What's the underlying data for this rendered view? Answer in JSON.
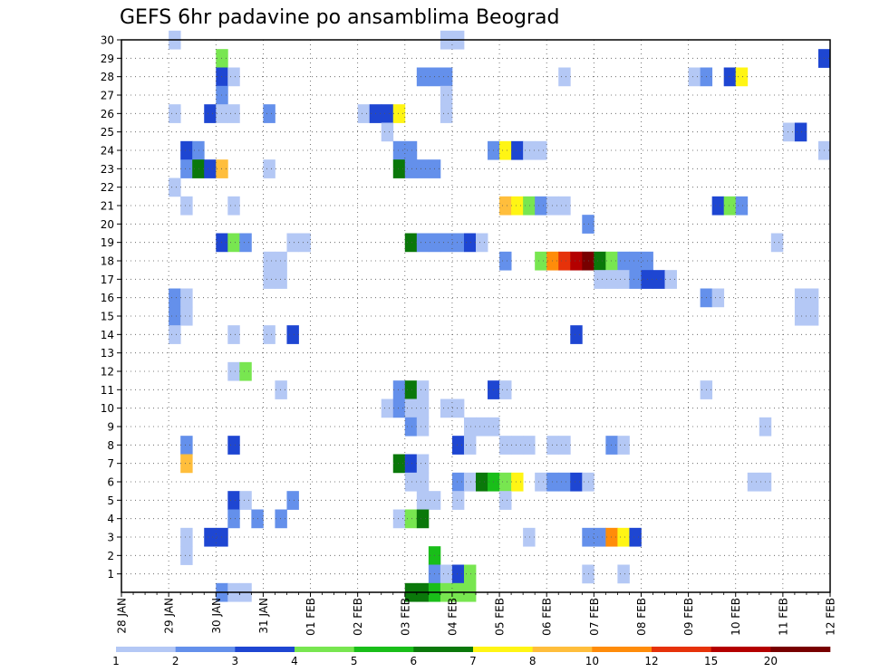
{
  "chart_data": {
    "type": "heatmap",
    "title": "GEFS 6hr padavine po ansamblima Beograd",
    "xlabel": "",
    "ylabel": "",
    "x_unit_note": "6-hour steps from 28 JAN (step 0) to 12 FEB (step 60)",
    "x_ticks": [
      "28 JAN",
      "29 JAN",
      "30 JAN",
      "31 JAN",
      "01 FEB",
      "02 FEB",
      "03 FEB",
      "04 FEB",
      "05 FEB",
      "06 FEB",
      "07 FEB",
      "08 FEB",
      "09 FEB",
      "10 FEB",
      "11 FEB",
      "12 FEB"
    ],
    "y_ticks": [
      "1",
      "2",
      "3",
      "4",
      "5",
      "6",
      "7",
      "8",
      "9",
      "10",
      "11",
      "12",
      "13",
      "14",
      "15",
      "16",
      "17",
      "18",
      "19",
      "20",
      "21",
      "22",
      "23",
      "24",
      "25",
      "26",
      "27",
      "28",
      "29",
      "30"
    ],
    "ylim": [
      0,
      30
    ],
    "grid": true,
    "colorbar": {
      "labels": [
        "1",
        "2",
        "3",
        "4",
        "5",
        "6",
        "7",
        "8",
        "10",
        "12",
        "15",
        "20"
      ],
      "colors": [
        "#b4c8f5",
        "#6490eb",
        "#1e46d2",
        "#78e650",
        "#19be19",
        "#0a780a",
        "#fff514",
        "#ffbe3c",
        "#ff8c0a",
        "#e6320a",
        "#b40000",
        "#780000"
      ]
    },
    "cells": [
      [
        30,
        4,
        1
      ],
      [
        30,
        27,
        1
      ],
      [
        30,
        28,
        1
      ],
      [
        29,
        8,
        4
      ],
      [
        29,
        59,
        3
      ],
      [
        28,
        8,
        3
      ],
      [
        28,
        9,
        1
      ],
      [
        28,
        25,
        2
      ],
      [
        28,
        26,
        2
      ],
      [
        28,
        27,
        2
      ],
      [
        28,
        37,
        1
      ],
      [
        28,
        48,
        1
      ],
      [
        28,
        49,
        2
      ],
      [
        28,
        51,
        3
      ],
      [
        28,
        52,
        7
      ],
      [
        27,
        8,
        2
      ],
      [
        27,
        27,
        1
      ],
      [
        26,
        4,
        1
      ],
      [
        26,
        7,
        3
      ],
      [
        26,
        8,
        1
      ],
      [
        26,
        9,
        1
      ],
      [
        26,
        12,
        2
      ],
      [
        26,
        20,
        1
      ],
      [
        26,
        21,
        3
      ],
      [
        26,
        22,
        3
      ],
      [
        26,
        23,
        7
      ],
      [
        26,
        27,
        1
      ],
      [
        25,
        22,
        1
      ],
      [
        25,
        56,
        1
      ],
      [
        25,
        57,
        3
      ],
      [
        24,
        5,
        3
      ],
      [
        24,
        6,
        2
      ],
      [
        24,
        23,
        2
      ],
      [
        24,
        24,
        2
      ],
      [
        24,
        31,
        2
      ],
      [
        24,
        32,
        7
      ],
      [
        24,
        33,
        3
      ],
      [
        24,
        34,
        1
      ],
      [
        24,
        35,
        1
      ],
      [
        24,
        59,
        1
      ],
      [
        23,
        5,
        2
      ],
      [
        23,
        6,
        6
      ],
      [
        23,
        7,
        3
      ],
      [
        23,
        8,
        8
      ],
      [
        23,
        12,
        1
      ],
      [
        23,
        23,
        6
      ],
      [
        23,
        24,
        2
      ],
      [
        23,
        25,
        2
      ],
      [
        23,
        26,
        2
      ],
      [
        22,
        4,
        1
      ],
      [
        21,
        5,
        1
      ],
      [
        21,
        9,
        1
      ],
      [
        21,
        32,
        8
      ],
      [
        21,
        33,
        7
      ],
      [
        21,
        34,
        4
      ],
      [
        21,
        35,
        2
      ],
      [
        21,
        36,
        1
      ],
      [
        21,
        37,
        1
      ],
      [
        21,
        50,
        3
      ],
      [
        21,
        51,
        4
      ],
      [
        21,
        52,
        2
      ],
      [
        20,
        39,
        2
      ],
      [
        19,
        8,
        3
      ],
      [
        19,
        9,
        4
      ],
      [
        19,
        10,
        2
      ],
      [
        19,
        14,
        1
      ],
      [
        19,
        15,
        1
      ],
      [
        19,
        24,
        6
      ],
      [
        19,
        25,
        2
      ],
      [
        19,
        26,
        2
      ],
      [
        19,
        27,
        2
      ],
      [
        19,
        28,
        2
      ],
      [
        19,
        29,
        3
      ],
      [
        19,
        30,
        1
      ],
      [
        19,
        55,
        1
      ],
      [
        18,
        12,
        1
      ],
      [
        18,
        13,
        1
      ],
      [
        18,
        32,
        2
      ],
      [
        18,
        35,
        4
      ],
      [
        18,
        36,
        9
      ],
      [
        18,
        37,
        10
      ],
      [
        18,
        38,
        11
      ],
      [
        18,
        39,
        12
      ],
      [
        18,
        40,
        6
      ],
      [
        18,
        41,
        4
      ],
      [
        18,
        42,
        2
      ],
      [
        18,
        43,
        2
      ],
      [
        18,
        44,
        2
      ],
      [
        17,
        12,
        1
      ],
      [
        17,
        13,
        1
      ],
      [
        17,
        40,
        1
      ],
      [
        17,
        41,
        1
      ],
      [
        17,
        42,
        1
      ],
      [
        17,
        43,
        2
      ],
      [
        17,
        44,
        3
      ],
      [
        17,
        45,
        3
      ],
      [
        17,
        46,
        1
      ],
      [
        16,
        4,
        2
      ],
      [
        16,
        5,
        1
      ],
      [
        16,
        49,
        2
      ],
      [
        16,
        50,
        1
      ],
      [
        16,
        57,
        1
      ],
      [
        16,
        58,
        1
      ],
      [
        15,
        4,
        2
      ],
      [
        15,
        5,
        1
      ],
      [
        15,
        57,
        1
      ],
      [
        15,
        58,
        1
      ],
      [
        14,
        4,
        1
      ],
      [
        14,
        9,
        1
      ],
      [
        14,
        12,
        1
      ],
      [
        14,
        14,
        3
      ],
      [
        14,
        38,
        3
      ],
      [
        12,
        9,
        1
      ],
      [
        12,
        10,
        4
      ],
      [
        11,
        13,
        1
      ],
      [
        11,
        23,
        2
      ],
      [
        11,
        24,
        6
      ],
      [
        11,
        25,
        1
      ],
      [
        11,
        31,
        3
      ],
      [
        11,
        32,
        1
      ],
      [
        11,
        49,
        1
      ],
      [
        10,
        22,
        1
      ],
      [
        10,
        23,
        2
      ],
      [
        10,
        24,
        1
      ],
      [
        10,
        25,
        1
      ],
      [
        10,
        27,
        1
      ],
      [
        10,
        28,
        1
      ],
      [
        9,
        24,
        2
      ],
      [
        9,
        25,
        1
      ],
      [
        9,
        29,
        1
      ],
      [
        9,
        30,
        1
      ],
      [
        9,
        31,
        1
      ],
      [
        9,
        54,
        1
      ],
      [
        8,
        5,
        2
      ],
      [
        8,
        9,
        3
      ],
      [
        8,
        28,
        3
      ],
      [
        8,
        29,
        1
      ],
      [
        8,
        32,
        1
      ],
      [
        8,
        33,
        1
      ],
      [
        8,
        34,
        1
      ],
      [
        8,
        36,
        1
      ],
      [
        8,
        37,
        1
      ],
      [
        8,
        41,
        2
      ],
      [
        8,
        42,
        1
      ],
      [
        7,
        5,
        8
      ],
      [
        7,
        23,
        6
      ],
      [
        7,
        24,
        3
      ],
      [
        7,
        25,
        1
      ],
      [
        6,
        24,
        1
      ],
      [
        6,
        25,
        1
      ],
      [
        6,
        28,
        2
      ],
      [
        6,
        29,
        1
      ],
      [
        6,
        30,
        6
      ],
      [
        6,
        31,
        5
      ],
      [
        6,
        32,
        4
      ],
      [
        6,
        33,
        7
      ],
      [
        6,
        35,
        1
      ],
      [
        6,
        36,
        2
      ],
      [
        6,
        37,
        2
      ],
      [
        6,
        38,
        3
      ],
      [
        6,
        39,
        1
      ],
      [
        6,
        53,
        1
      ],
      [
        6,
        54,
        1
      ],
      [
        5,
        9,
        3
      ],
      [
        5,
        10,
        1
      ],
      [
        5,
        14,
        2
      ],
      [
        5,
        25,
        1
      ],
      [
        5,
        26,
        1
      ],
      [
        5,
        28,
        1
      ],
      [
        5,
        32,
        1
      ],
      [
        4,
        9,
        2
      ],
      [
        4,
        11,
        2
      ],
      [
        4,
        13,
        2
      ],
      [
        4,
        23,
        1
      ],
      [
        4,
        24,
        4
      ],
      [
        4,
        25,
        6
      ],
      [
        3,
        5,
        1
      ],
      [
        3,
        7,
        3
      ],
      [
        3,
        8,
        3
      ],
      [
        3,
        34,
        1
      ],
      [
        3,
        39,
        2
      ],
      [
        3,
        40,
        2
      ],
      [
        3,
        41,
        9
      ],
      [
        3,
        42,
        7
      ],
      [
        3,
        43,
        3
      ],
      [
        2,
        5,
        1
      ],
      [
        2,
        26,
        5
      ],
      [
        1,
        26,
        2
      ],
      [
        1,
        27,
        1
      ],
      [
        1,
        28,
        3
      ],
      [
        1,
        29,
        4
      ],
      [
        1,
        39,
        1
      ],
      [
        1,
        42,
        1
      ],
      [
        0,
        8,
        2
      ],
      [
        0,
        9,
        1
      ],
      [
        0,
        10,
        1
      ],
      [
        0,
        24,
        6
      ],
      [
        0,
        25,
        6
      ],
      [
        0,
        26,
        5
      ],
      [
        0,
        27,
        4
      ],
      [
        0,
        28,
        4
      ],
      [
        0,
        29,
        4
      ]
    ]
  }
}
